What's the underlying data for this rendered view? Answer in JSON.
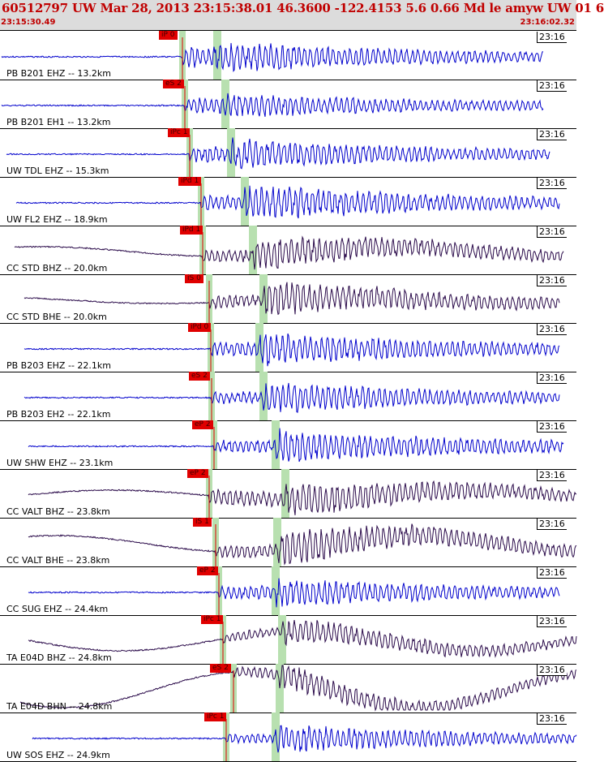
{
  "header": {
    "title": "60512797 UW Mar 28, 2013 23:15:38.01   46.3600 -122.4153  5.6 0.66 Md le amyw UW 01   6",
    "start_time": "23:15:30.49",
    "end_time": "23:16:02.32"
  },
  "colors": {
    "header_bg": "#dcdcdc",
    "header_text": "#c00000",
    "trace_blue": "#0000cc",
    "trace_dark": "#2a0a4a",
    "pick_red": "#e00000",
    "phase_band_green": "#b8e0b0"
  },
  "panels": [
    {
      "label": "PB B201 EHZ -- 13.2km",
      "time": "23:16",
      "pick": "iP 0",
      "color": "blue"
    },
    {
      "label": "PB B201 EH1 -- 13.2km",
      "time": "23:16",
      "pick": "eS 2",
      "color": "blue"
    },
    {
      "label": "UW TDL EHZ -- 15.3km",
      "time": "23:16",
      "pick": "iPc 1",
      "color": "blue"
    },
    {
      "label": "UW FL2 EHZ -- 18.9km",
      "time": "23:16",
      "pick": "iPd 1",
      "color": "blue"
    },
    {
      "label": "CC STD BHZ -- 20.0km",
      "time": "23:16",
      "pick": "iPd 1",
      "color": "dark"
    },
    {
      "label": "CC STD BHE -- 20.0km",
      "time": "23:16",
      "pick": "iS 0",
      "color": "dark"
    },
    {
      "label": "PB B203 EHZ -- 22.1km",
      "time": "23:16",
      "pick": "iPd 0",
      "color": "blue"
    },
    {
      "label": "PB B203 EH2 -- 22.1km",
      "time": "23:16",
      "pick": "eS 2",
      "color": "blue"
    },
    {
      "label": "UW SHW EHZ -- 23.1km",
      "time": "23:16",
      "pick": "eP 2",
      "color": "blue"
    },
    {
      "label": "CC VALT BHZ -- 23.8km",
      "time": "23:16",
      "pick": "eP 2",
      "color": "dark"
    },
    {
      "label": "CC VALT BHE -- 23.8km",
      "time": "23:16",
      "pick": "iS 1",
      "color": "dark"
    },
    {
      "label": "CC SUG EHZ -- 24.4km",
      "time": "23:16",
      "pick": "eP 2",
      "color": "blue"
    },
    {
      "label": "TA E04D BHZ -- 24.8km",
      "time": "23:16",
      "pick": "iPc 1",
      "color": "dark"
    },
    {
      "label": "TA E04D BHN -- 24.8km",
      "time": "23:16",
      "pick": "eS 2",
      "color": "dark"
    },
    {
      "label": "UW SOS EHZ -- 24.9km",
      "time": "23:16",
      "pick": "iPc 1",
      "color": "blue"
    }
  ]
}
